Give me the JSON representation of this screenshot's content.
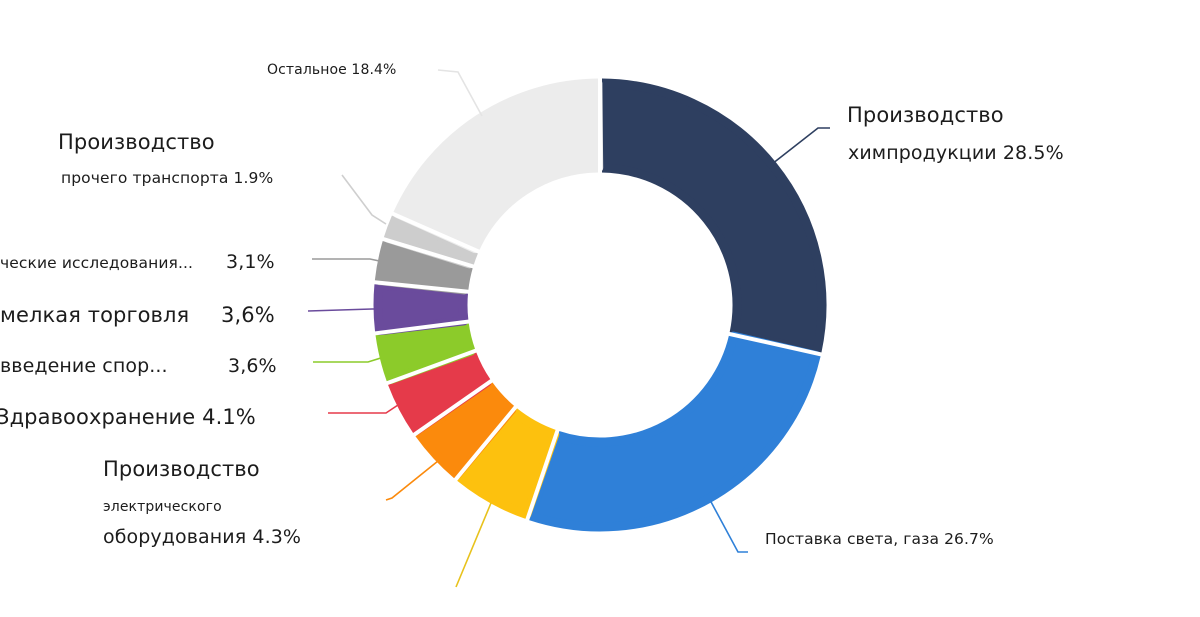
{
  "chart_data": {
    "type": "pie",
    "subtype": "donut",
    "title": "",
    "unit": "%",
    "center": [
      600,
      305
    ],
    "outer_radius": 222,
    "inner_radius": 137,
    "start_angle_deg": 0,
    "direction": "clockwise",
    "legend": "none (leader-line labels)",
    "slices": [
      {
        "key": "chem",
        "label": "Производство химпродукции",
        "value": 28.5,
        "color": "#2e3f60"
      },
      {
        "key": "power",
        "label": "Поставка света, газа",
        "value": 26.7,
        "color": "#2f80d8"
      },
      {
        "key": "yellow",
        "label": "",
        "value": 5.8,
        "color": "#fdc10e"
      },
      {
        "key": "electro",
        "label": "Производство электрического оборудования",
        "value": 4.3,
        "color": "#fb8a0c"
      },
      {
        "key": "health",
        "label": "Здравоохранение",
        "value": 4.1,
        "color": "#e53a4a"
      },
      {
        "key": "sport",
        "label": "…введение спор…",
        "value": 3.6,
        "color": "#8ccb2a"
      },
      {
        "key": "retail",
        "label": "…мелкая торговля",
        "value": 3.6,
        "color": "#6a4b9c"
      },
      {
        "key": "research",
        "label": "…ческие исследования…",
        "value": 3.1,
        "color": "#9a9a9a"
      },
      {
        "key": "transport",
        "label": "Производство прочего транспорта",
        "value": 1.9,
        "color": "#cdcdcd"
      },
      {
        "key": "other",
        "label": "Остальное",
        "value": 18.4,
        "color": "#ececec"
      }
    ]
  },
  "labels": {
    "other": {
      "line1": "Остальное 18.4%"
    },
    "chem": {
      "line1": "Производство",
      "line2": "химпродукции 28.5%"
    },
    "transport": {
      "line1": "Производство",
      "line2": "прочего транспорта 1.9%"
    },
    "research": {
      "name": "ческие исследования...",
      "pct": "3,1%"
    },
    "retail": {
      "name": "мелкая торговля",
      "pct": "3,6%"
    },
    "sport": {
      "name": "введение спор...",
      "pct": "3,6%"
    },
    "health": {
      "line1": "Здравоохранение 4.1%"
    },
    "electro": {
      "line1": "Производство",
      "line2": "электрического",
      "line3": "оборудования 4.3%"
    },
    "power": {
      "line1": "Поставка света, газа 26.7%"
    }
  }
}
